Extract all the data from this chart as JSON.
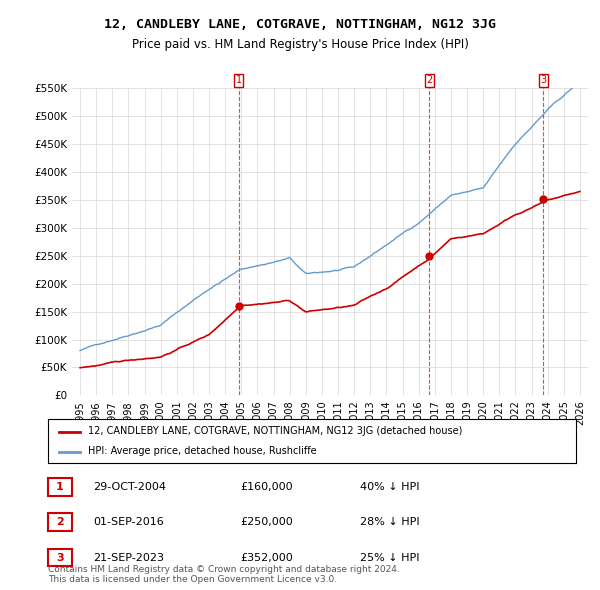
{
  "title": "12, CANDLEBY LANE, COTGRAVE, NOTTINGHAM, NG12 3JG",
  "subtitle": "Price paid vs. HM Land Registry's House Price Index (HPI)",
  "ylabel": "",
  "ylim": [
    0,
    550000
  ],
  "yticks": [
    0,
    50000,
    100000,
    150000,
    200000,
    250000,
    300000,
    350000,
    400000,
    450000,
    500000,
    550000
  ],
  "ytick_labels": [
    "£0",
    "£50K",
    "£100K",
    "£150K",
    "£200K",
    "£250K",
    "£300K",
    "£350K",
    "£400K",
    "£450K",
    "£500K",
    "£550K"
  ],
  "xlim_start": 1994.5,
  "xlim_end": 2026.5,
  "sale_dates": [
    "29-OCT-2004",
    "01-SEP-2016",
    "21-SEP-2023"
  ],
  "sale_years": [
    2004.83,
    2016.67,
    2023.72
  ],
  "sale_prices": [
    160000,
    250000,
    352000
  ],
  "sale_hpi_pcts": [
    "40%",
    "28%",
    "25%"
  ],
  "legend_property": "12, CANDLEBY LANE, COTGRAVE, NOTTINGHAM, NG12 3JG (detached house)",
  "legend_hpi": "HPI: Average price, detached house, Rushcliffe",
  "line_property_color": "#cc0000",
  "line_hpi_color": "#6699cc",
  "sale_marker_color": "#cc0000",
  "grid_color": "#dddddd",
  "footer": "Contains HM Land Registry data © Crown copyright and database right 2024.\nThis data is licensed under the Open Government Licence v3.0.",
  "background_color": "#ffffff",
  "box_color": "#cc0000"
}
